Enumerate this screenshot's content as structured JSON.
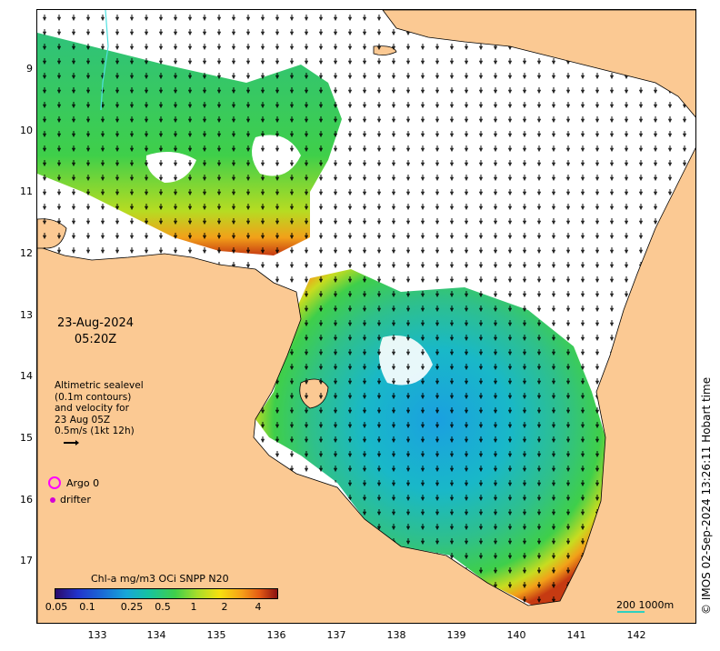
{
  "map": {
    "date_line1": "23-Aug-2024",
    "date_line2": "05:20Z",
    "legend_lines": [
      "Altimetric sealevel",
      "(0.1m contours)",
      "and velocity for",
      "23 Aug 05Z",
      "0.5m/s (1kt 12h)"
    ],
    "argo_label": "Argo 0",
    "drifter_label": "drifter",
    "colorbar_title": "Chl-a mg/m3 OCi SNPP N20",
    "colorbar_ticks": [
      "0.05",
      "0.1",
      "0.25",
      "0.5",
      "1",
      "2",
      "4"
    ],
    "scale_label": "200  1000m",
    "credit": "© IMOS 02-Sep-2024 13:26:11 Hobart time",
    "y_ticks": [
      "9",
      "10",
      "11",
      "12",
      "13",
      "14",
      "15",
      "16",
      "17"
    ],
    "x_ticks": [
      "133",
      "134",
      "135",
      "136",
      "137",
      "138",
      "139",
      "140",
      "141",
      "142"
    ],
    "colors": {
      "land": "#fbc993",
      "high_chl": "#e5651a",
      "mid_chl": "#3ccf52",
      "low_chl": "#1aa5d8",
      "arrow": "#000000"
    },
    "icons": [
      "argo-ring-icon",
      "drifter-dot-icon",
      "velocity-arrow-icon"
    ]
  }
}
